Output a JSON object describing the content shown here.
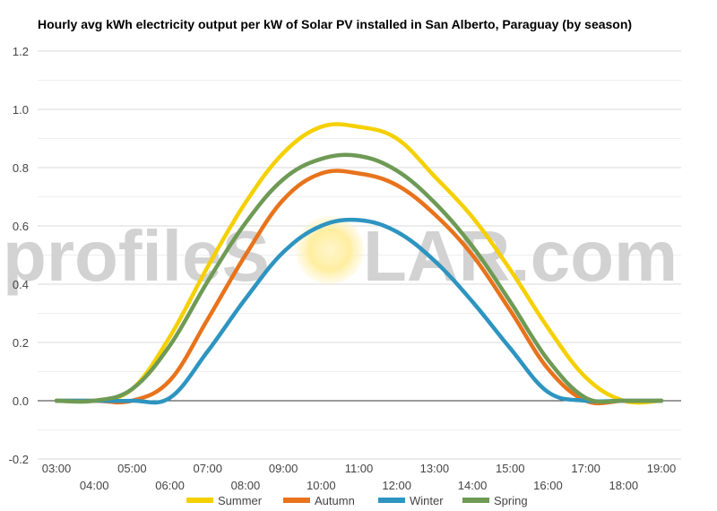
{
  "chart_data": {
    "type": "line",
    "title": "Hourly avg kWh electricity output per kW of Solar PV installed in San Alberto, Paraguay (by season)",
    "xlabel": "",
    "ylabel": "",
    "x": [
      "03:00",
      "04:00",
      "05:00",
      "06:00",
      "07:00",
      "08:00",
      "09:00",
      "10:00",
      "11:00",
      "12:00",
      "13:00",
      "14:00",
      "15:00",
      "16:00",
      "17:00",
      "18:00",
      "19:00"
    ],
    "ylim": [
      -0.2,
      1.2
    ],
    "yticks": [
      "-0.2",
      "0.0",
      "0.2",
      "0.4",
      "0.6",
      "0.8",
      "1.0",
      "1.2"
    ],
    "grid": true,
    "legend_position": "bottom",
    "series": [
      {
        "name": "Summer",
        "color": "#f5d000",
        "values": [
          0.0,
          0.0,
          0.04,
          0.22,
          0.46,
          0.68,
          0.85,
          0.94,
          0.94,
          0.9,
          0.77,
          0.63,
          0.45,
          0.25,
          0.08,
          0.0,
          0.0
        ]
      },
      {
        "name": "Autumn",
        "color": "#e8731c",
        "values": [
          0.0,
          0.0,
          0.0,
          0.07,
          0.28,
          0.5,
          0.69,
          0.78,
          0.78,
          0.74,
          0.64,
          0.5,
          0.31,
          0.11,
          0.0,
          0.0,
          0.0
        ]
      },
      {
        "name": "Winter",
        "color": "#2e94c0",
        "values": [
          0.0,
          0.0,
          0.0,
          0.01,
          0.17,
          0.35,
          0.51,
          0.6,
          0.62,
          0.58,
          0.48,
          0.34,
          0.18,
          0.03,
          0.0,
          0.0,
          0.0
        ]
      },
      {
        "name": "Spring",
        "color": "#6e9a55",
        "values": [
          0.0,
          0.0,
          0.04,
          0.19,
          0.41,
          0.61,
          0.76,
          0.83,
          0.84,
          0.79,
          0.68,
          0.53,
          0.34,
          0.14,
          0.01,
          0.0,
          0.0
        ]
      }
    ]
  },
  "watermark": {
    "before": "profileS",
    "after": "LAR.com"
  }
}
